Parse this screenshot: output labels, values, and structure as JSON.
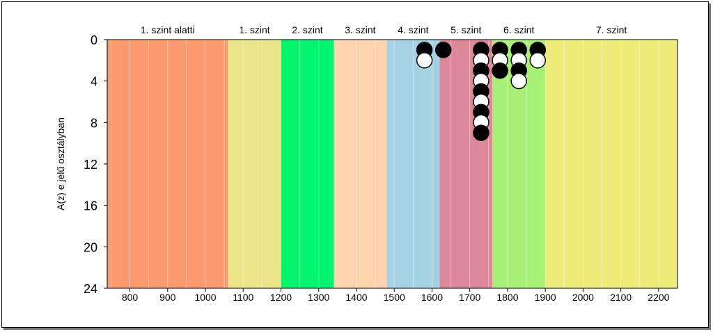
{
  "chart_data": {
    "type": "scatter",
    "title": "",
    "xlabel": "",
    "ylabel": "A(z) e jelű osztályban",
    "xlim": [
      740,
      2250
    ],
    "ylim": [
      24,
      0
    ],
    "x_ticks": [
      800,
      900,
      1000,
      1100,
      1200,
      1300,
      1400,
      1500,
      1600,
      1700,
      1800,
      1900,
      2000,
      2100,
      2200
    ],
    "y_ticks": [
      0,
      4,
      8,
      12,
      16,
      20,
      24
    ],
    "grid": "vertical minor lines",
    "levels": [
      {
        "label": "1. szint alatti",
        "from": 740,
        "to": 1060,
        "color": "#fc9a6e"
      },
      {
        "label": "1. szint",
        "from": 1060,
        "to": 1200,
        "color": "#ece488"
      },
      {
        "label": "2. szint",
        "from": 1200,
        "to": 1340,
        "color": "#00f56c"
      },
      {
        "label": "3. szint",
        "from": 1340,
        "to": 1480,
        "color": "#fed4ad"
      },
      {
        "label": "4. szint",
        "from": 1480,
        "to": 1620,
        "color": "#a5d2e2"
      },
      {
        "label": "5. szint",
        "from": 1620,
        "to": 1760,
        "color": "#dc8899"
      },
      {
        "label": "6. szint",
        "from": 1760,
        "to": 1900,
        "color": "#a6f076"
      },
      {
        "label": "7. szint",
        "from": 1900,
        "to": 2250,
        "color": "#eeec78"
      }
    ],
    "points": [
      {
        "x": 1580,
        "y": 1,
        "fill": "black"
      },
      {
        "x": 1580,
        "y": 2,
        "fill": "white"
      },
      {
        "x": 1630,
        "y": 1,
        "fill": "black"
      },
      {
        "x": 1730,
        "y": 1,
        "fill": "black"
      },
      {
        "x": 1730,
        "y": 2,
        "fill": "white"
      },
      {
        "x": 1730,
        "y": 3,
        "fill": "black"
      },
      {
        "x": 1730,
        "y": 4,
        "fill": "white"
      },
      {
        "x": 1730,
        "y": 5,
        "fill": "black"
      },
      {
        "x": 1730,
        "y": 6,
        "fill": "white"
      },
      {
        "x": 1730,
        "y": 7,
        "fill": "black"
      },
      {
        "x": 1730,
        "y": 8,
        "fill": "white"
      },
      {
        "x": 1730,
        "y": 9,
        "fill": "black"
      },
      {
        "x": 1780,
        "y": 1,
        "fill": "black"
      },
      {
        "x": 1780,
        "y": 2,
        "fill": "white"
      },
      {
        "x": 1780,
        "y": 3,
        "fill": "black"
      },
      {
        "x": 1830,
        "y": 1,
        "fill": "black"
      },
      {
        "x": 1830,
        "y": 2,
        "fill": "white"
      },
      {
        "x": 1830,
        "y": 3,
        "fill": "black"
      },
      {
        "x": 1830,
        "y": 4,
        "fill": "white"
      },
      {
        "x": 1880,
        "y": 1,
        "fill": "black"
      },
      {
        "x": 1880,
        "y": 2,
        "fill": "white"
      }
    ]
  }
}
